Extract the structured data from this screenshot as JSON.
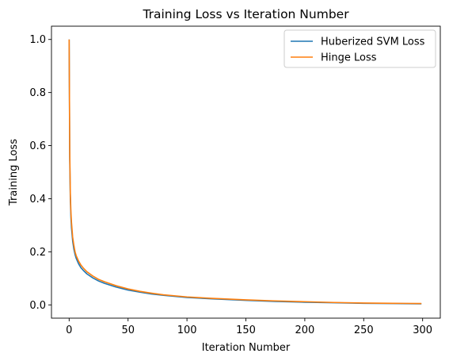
{
  "chart_data": {
    "type": "line",
    "title": "Training Loss vs Iteration Number",
    "xlabel": "Iteration Number",
    "ylabel": "Training Loss",
    "xlim": [
      -15,
      315
    ],
    "ylim": [
      -0.05,
      1.05
    ],
    "xticks": [
      0,
      50,
      100,
      150,
      200,
      250,
      300
    ],
    "yticks": [
      0.0,
      0.2,
      0.4,
      0.6,
      0.8,
      1.0
    ],
    "ytick_labels": [
      "0.0",
      "0.2",
      "0.4",
      "0.6",
      "0.8",
      "1.0"
    ],
    "grid": false,
    "legend": "top-right",
    "x": [
      0,
      0.5,
      1,
      1.5,
      2,
      3,
      4,
      5,
      6,
      8,
      10,
      12,
      15,
      20,
      25,
      30,
      40,
      50,
      60,
      70,
      80,
      100,
      120,
      150,
      175,
      200,
      225,
      250,
      275,
      299
    ],
    "series": [
      {
        "name": "Huberized SVM Loss",
        "color": "#1f77b4",
        "values": [
          1.0,
          0.55,
          0.4,
          0.33,
          0.29,
          0.24,
          0.21,
          0.19,
          0.175,
          0.155,
          0.14,
          0.13,
          0.117,
          0.102,
          0.09,
          0.081,
          0.067,
          0.056,
          0.048,
          0.041,
          0.036,
          0.028,
          0.023,
          0.017,
          0.013,
          0.01,
          0.008,
          0.006,
          0.005,
          0.004
        ]
      },
      {
        "name": "Hinge Loss",
        "color": "#ff7f0e",
        "values": [
          1.0,
          0.58,
          0.42,
          0.35,
          0.31,
          0.255,
          0.225,
          0.2,
          0.185,
          0.165,
          0.15,
          0.139,
          0.125,
          0.109,
          0.096,
          0.087,
          0.072,
          0.06,
          0.051,
          0.044,
          0.038,
          0.03,
          0.025,
          0.019,
          0.015,
          0.012,
          0.009,
          0.007,
          0.006,
          0.005
        ]
      }
    ]
  }
}
